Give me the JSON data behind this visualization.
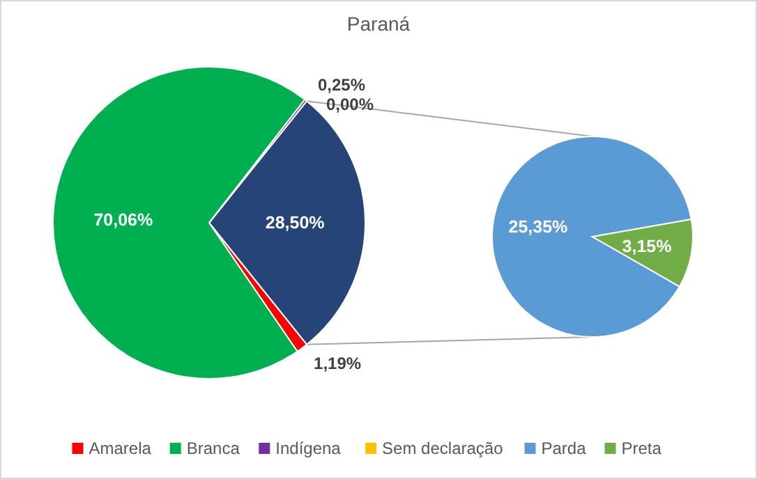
{
  "chart_data": [
    {
      "type": "pie",
      "title": "Paraná",
      "categories": [
        "Amarela",
        "Branca",
        "Indígena",
        "Sem declaração",
        null
      ],
      "values": [
        1.19,
        70.06,
        0.25,
        0.0,
        28.5
      ],
      "colors": [
        "#ff0000",
        "#00b050",
        "#7030a0",
        "#ffc000",
        "#264478"
      ],
      "value_labels": [
        "1,19%",
        "70,06%",
        "0,25%",
        "0,00%",
        "28,50%"
      ],
      "legend": "bottom"
    },
    {
      "type": "pie",
      "categories": [
        "Parda",
        "Preta"
      ],
      "values": [
        25.35,
        3.15
      ],
      "colors": [
        "#5b9bd5",
        "#70ad47"
      ],
      "value_labels": [
        "25,35%",
        "3,15%"
      ],
      "legend": "bottom"
    }
  ]
}
